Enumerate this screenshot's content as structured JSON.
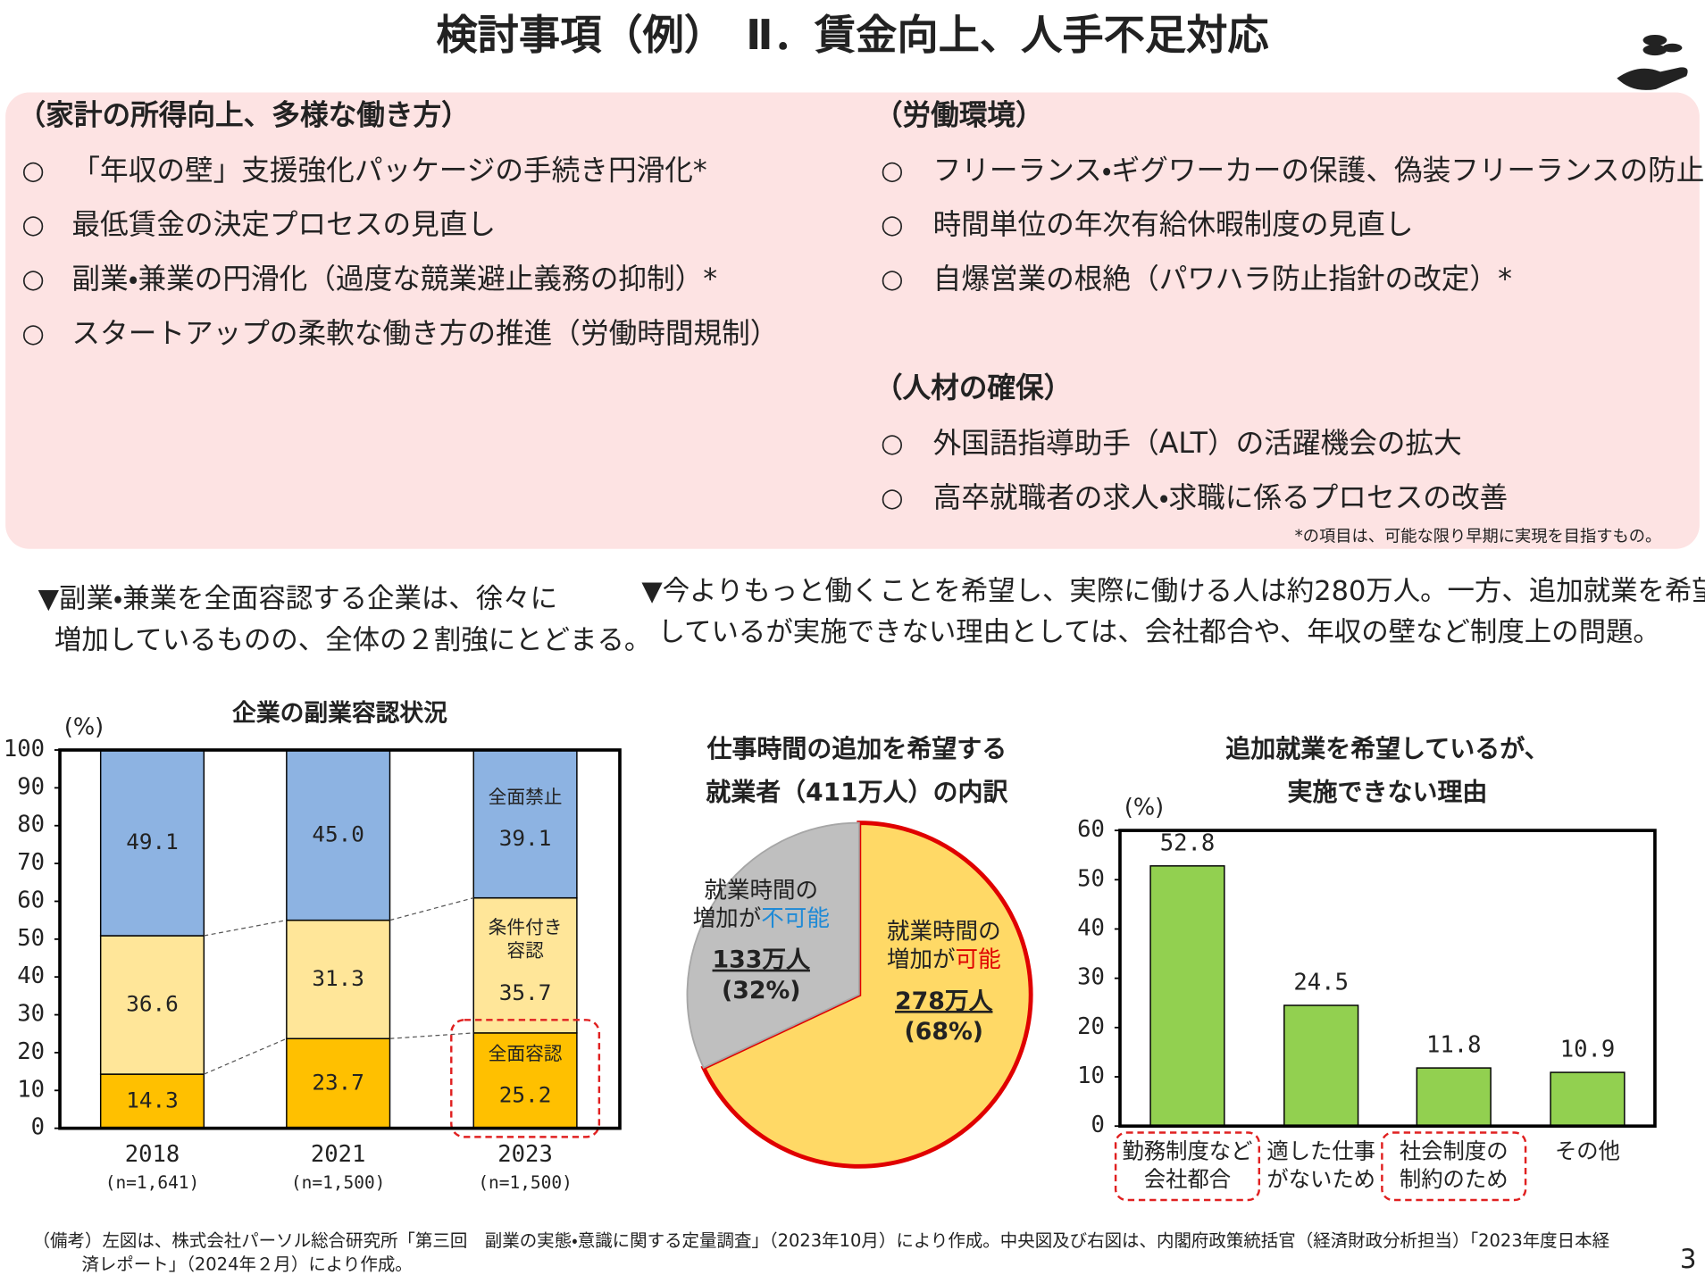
{
  "header": {
    "title": "検討事項（例）　Ⅱ．賃金向上、人手不足対応"
  },
  "panel": {
    "bullet": "○",
    "columns": [
      {
        "sections": [
          {
            "heading": "（家計の所得向上、多様な働き方）",
            "items": [
              "「年収の壁」支援強化パッケージの手続き円滑化*",
              "最低賃金の決定プロセスの見直し",
              "副業・兼業の円滑化（過度な競業避止義務の抑制）*",
              "スタートアップの柔軟な働き方の推進（労働時間規制）"
            ]
          }
        ]
      },
      {
        "sections": [
          {
            "heading": "（労働環境）",
            "items": [
              "フリーランス・ギグワーカーの保護、偽装フリーランスの防止*",
              "時間単位の年次有給休暇制度の見直し",
              "自爆営業の根絶（パワハラ防止指針の改定）*"
            ]
          },
          {
            "heading": "（人材の確保）",
            "items": [
              "外国語指導助手（ALT）の活躍機会の拡大",
              "高卒就職者の求人・求職に係るプロセスの改善"
            ]
          }
        ]
      }
    ],
    "footnote": "*の項目は、可能な限り早期に実現を目指すもの。"
  },
  "notes": [
    [
      "▼副業・兼業を全面容認する企業は、徐々に",
      "増加しているものの、全体の２割強にとどまる。"
    ],
    [
      "▼今よりもっと働くことを希望し、実際に働ける人は約280万人。一方、追加就業を希望",
      "しているが実施できない理由としては、会社都合や、年収の壁など制度上の問題。"
    ]
  ],
  "chart_data": [
    {
      "type": "bar",
      "stacked": true,
      "title": "企業の副業容認状況",
      "y_unit": "(%)",
      "categories": [
        "2018",
        "2021",
        "2023"
      ],
      "category_notes": [
        "(n=1,641)",
        "(n=1,500)",
        "(n=1,500)"
      ],
      "series": [
        {
          "name": "全面容認",
          "color": "#ffc000",
          "values": [
            14.3,
            23.7,
            25.2
          ]
        },
        {
          "name": "条件付き容認",
          "color": "#ffe699",
          "values": [
            36.6,
            31.3,
            35.7
          ]
        },
        {
          "name": "全面禁止",
          "color": "#8db3e2",
          "values": [
            49.1,
            45.0,
            39.1
          ],
          "value_labels": [
            "49.1",
            "45.0",
            "39.1"
          ]
        }
      ],
      "ylim": [
        0,
        100
      ],
      "yticks": [
        0,
        10,
        20,
        30,
        40,
        50,
        60,
        70,
        80,
        90,
        100
      ]
    },
    {
      "type": "pie",
      "title_lines": [
        "仕事時間の追加を希望する",
        "就業者（411万人）の内訳"
      ],
      "categories": [
        [
          "就業時間の",
          "増加が",
          "可能"
        ],
        [
          "就業時間の",
          "増加が",
          "不可能"
        ]
      ],
      "values": [
        68,
        32
      ],
      "value_labels": [
        "(68%)",
        "(32%)"
      ],
      "counts": [
        "278万人",
        "133万人"
      ],
      "colors": [
        "#ffd966",
        "#bfbfbf"
      ],
      "edge_colors": [
        "#e00000",
        "#a6a6a6"
      ],
      "emphasis_colors": [
        "#e00000",
        "#1f8ad6"
      ]
    },
    {
      "type": "bar",
      "title_lines": [
        "追加就業を希望しているが、",
        "実施できない理由"
      ],
      "y_unit": "(%)",
      "categories": [
        [
          "勤務制度など",
          "会社都合"
        ],
        [
          "適した仕事",
          "がないため"
        ],
        [
          "社会制度の",
          "制約のため"
        ],
        [
          "その他"
        ]
      ],
      "values": [
        52.8,
        24.5,
        11.8,
        10.9
      ],
      "color": "#92d050",
      "highlighted": [
        true,
        false,
        true,
        false
      ],
      "ylim": [
        0,
        60
      ],
      "yticks": [
        0,
        10,
        20,
        30,
        40,
        50,
        60
      ]
    }
  ],
  "source": [
    "（備考）左図は、株式会社パーソル総合研究所「第三回　副業の実態・意識に関する定量調査」（2023年10月）により作成。中央図及び右図は、内閣府政策統括官（経済財政分析担当）「2023年度日本経",
    "済レポート」（2024年２月）により作成。"
  ],
  "page_number": "3"
}
